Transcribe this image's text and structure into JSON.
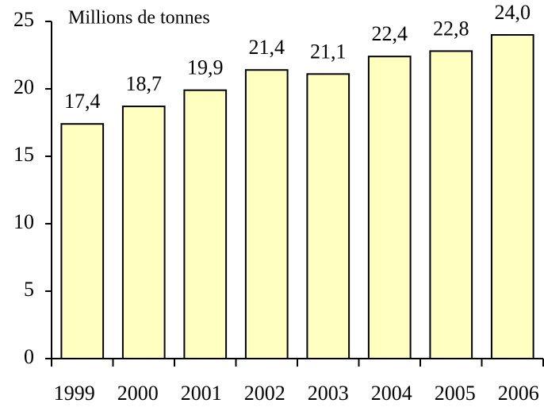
{
  "chart_data": {
    "type": "bar",
    "y_label": "Millions de tonnes",
    "categories": [
      "1999",
      "2000",
      "2001",
      "2002",
      "2003",
      "2004",
      "2005",
      "2006"
    ],
    "values": [
      17.4,
      18.7,
      19.9,
      21.4,
      21.1,
      22.4,
      22.8,
      24.0
    ],
    "value_labels": [
      "17,4",
      "18,7",
      "19,9",
      "21,4",
      "21,1",
      "22,4",
      "22,8",
      "24,0"
    ],
    "color": "#ffffc0",
    "ylim": [
      0,
      25
    ],
    "yticks": [
      0,
      5,
      10,
      15,
      20,
      25
    ],
    "grid": false
  }
}
